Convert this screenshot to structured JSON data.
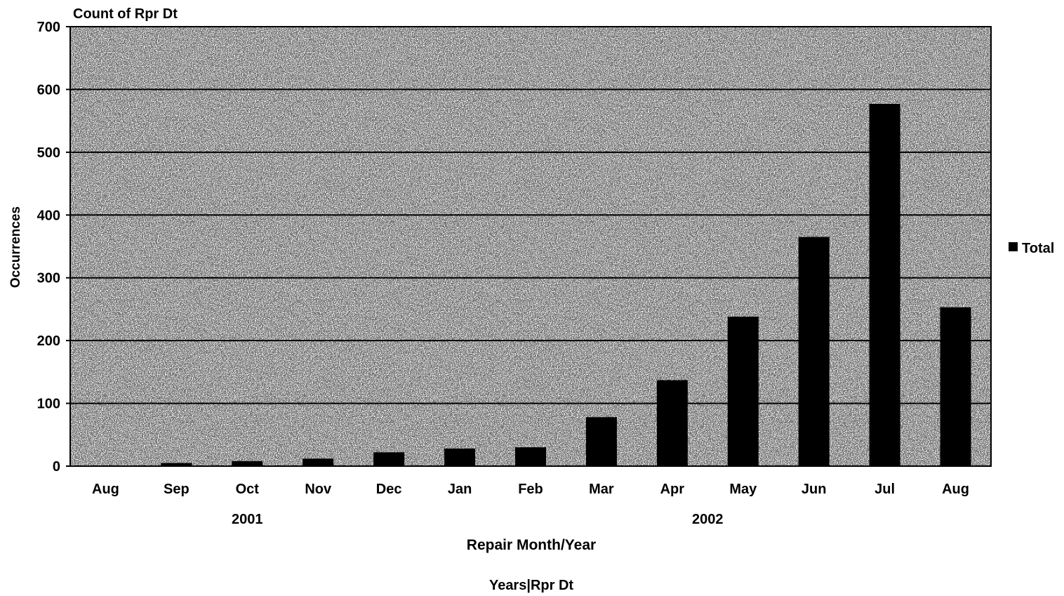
{
  "chart_data": {
    "type": "bar",
    "title": "Count of Rpr Dt",
    "xlabel": "Repair Month/Year",
    "ylabel": "Occurrences",
    "footer_label": "Years|Rpr Dt",
    "ylim": [
      0,
      700
    ],
    "yticks": [
      0,
      100,
      200,
      300,
      400,
      500,
      600,
      700
    ],
    "grid": true,
    "legend_position": "right",
    "categories": [
      "Aug",
      "Sep",
      "Oct",
      "Nov",
      "Dec",
      "Jan",
      "Feb",
      "Mar",
      "Apr",
      "May",
      "Jun",
      "Jul",
      "Aug"
    ],
    "year_groups": [
      {
        "label": "2001",
        "start": 0,
        "end": 4
      },
      {
        "label": "2002",
        "start": 5,
        "end": 12
      }
    ],
    "series": [
      {
        "name": "Total",
        "color": "#000000",
        "values": [
          0,
          5,
          8,
          12,
          22,
          28,
          30,
          78,
          137,
          238,
          365,
          577,
          253
        ]
      }
    ]
  }
}
